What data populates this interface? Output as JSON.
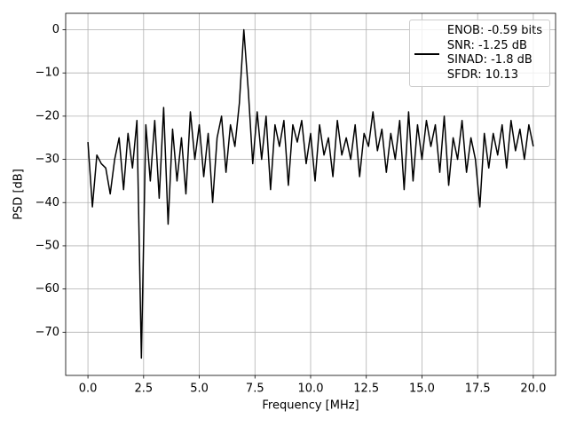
{
  "chart_data": {
    "type": "line",
    "xlabel": "Frequency [MHz]",
    "ylabel": "PSD [dB]",
    "x": [
      0,
      0.2,
      0.4,
      0.6,
      0.8,
      1,
      1.2,
      1.4,
      1.6,
      1.8,
      2,
      2.2,
      2.4,
      2.6,
      2.8,
      3,
      3.2,
      3.4,
      3.6,
      3.8,
      4,
      4.2,
      4.4,
      4.6,
      4.8,
      5,
      5.2,
      5.4,
      5.6,
      5.8,
      6,
      6.2,
      6.4,
      6.6,
      6.8,
      7,
      7.2,
      7.4,
      7.6,
      7.8,
      8,
      8.2,
      8.4,
      8.6,
      8.8,
      9,
      9.2,
      9.4,
      9.6,
      9.8,
      10,
      10.2,
      10.4,
      10.6,
      10.8,
      11,
      11.2,
      11.4,
      11.6,
      11.8,
      12,
      12.2,
      12.4,
      12.6,
      12.8,
      13,
      13.2,
      13.4,
      13.6,
      13.8,
      14,
      14.2,
      14.4,
      14.6,
      14.8,
      15,
      15.2,
      15.4,
      15.6,
      15.8,
      16,
      16.2,
      16.4,
      16.6,
      16.8,
      17,
      17.2,
      17.4,
      17.6,
      17.8,
      18,
      18.2,
      18.4,
      18.6,
      18.8,
      19,
      19.2,
      19.4,
      19.6,
      19.8,
      20
    ],
    "series": [
      {
        "name": "ENOB: -0.59 bits\nSNR: -1.25 dB\nSINAD: -1.8 dB\nSFDR: 10.13",
        "color": "#000000",
        "values": [
          -26,
          -41,
          -29,
          -31,
          -32,
          -38,
          -30,
          -25,
          -37,
          -24,
          -32,
          -21,
          -76,
          -22,
          -35,
          -21,
          -39,
          -18,
          -45,
          -23,
          -35,
          -25,
          -38,
          -19,
          -30,
          -22,
          -34,
          -24,
          -40,
          -25,
          -20,
          -33,
          -22,
          -27,
          -17,
          0,
          -14,
          -31,
          -19,
          -30,
          -20,
          -37,
          -22,
          -27,
          -21,
          -36,
          -22,
          -26,
          -21,
          -31,
          -24,
          -35,
          -22,
          -29,
          -25,
          -34,
          -21,
          -29,
          -25,
          -30,
          -22,
          -34,
          -24,
          -27,
          -19,
          -28,
          -23,
          -33,
          -24,
          -30,
          -21,
          -37,
          -19,
          -35,
          -22,
          -30,
          -21,
          -27,
          -22,
          -33,
          -20,
          -36,
          -25,
          -30,
          -21,
          -33,
          -25,
          -30,
          -41,
          -24,
          -32,
          -24,
          -29,
          -22,
          -32,
          -21,
          -28,
          -23,
          -30,
          -22,
          -27
        ]
      }
    ],
    "xlim": [
      -1,
      21
    ],
    "ylim": [
      -80,
      3.8
    ],
    "xticks": [
      {
        "value": 0,
        "label": "0.0"
      },
      2.5,
      {
        "value": 5,
        "label": "5.0"
      },
      7.5,
      {
        "value": 10,
        "label": "10.0"
      },
      12.5,
      {
        "value": 15,
        "label": "15.0"
      },
      17.5,
      {
        "value": 20,
        "label": "20.0"
      }
    ],
    "yticks": [
      {
        "value": -70,
        "label": "−70"
      },
      {
        "value": -60,
        "label": "−60"
      },
      {
        "value": -50,
        "label": "−50"
      },
      {
        "value": -40,
        "label": "−40"
      },
      {
        "value": -30,
        "label": "−30"
      },
      {
        "value": -20,
        "label": "−20"
      },
      {
        "value": -10,
        "label": "−10"
      },
      0
    ],
    "grid": true,
    "legend": "upper right"
  }
}
